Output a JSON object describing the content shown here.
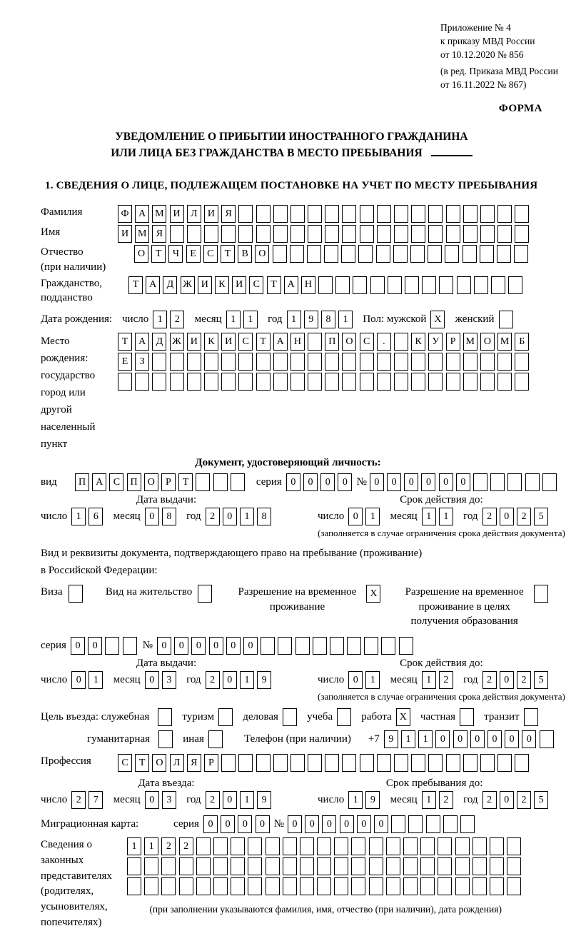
{
  "header": {
    "ref_main": "Приложение № 4\nк приказу МВД России\nот 10.12.2020 № 856",
    "ref_edit": "(в ред. Приказа МВД России\nот 16.11.2022 № 867)",
    "forma": "ФОРМА",
    "title_line1": "УВЕДОМЛЕНИЕ О ПРИБЫТИИ ИНОСТРАННОГО ГРАЖДАНИНА",
    "title_line2": "ИЛИ ЛИЦА БЕЗ ГРАЖДАНСТВА В МЕСТО ПРЕБЫВАНИЯ",
    "section1": "1. СВЕДЕНИЯ О ЛИЦЕ, ПОДЛЕЖАЩЕМ ПОСТАНОВКЕ НА УЧЕТ ПО МЕСТУ ПРЕБЫВАНИЯ"
  },
  "labels": {
    "surname": "Фамилия",
    "given_name": "Имя",
    "patronymic": "Отчество\n(при наличии)",
    "citizenship": "Гражданство,\nподданство",
    "birth_date": "Дата рождения:",
    "day": "число",
    "month": "месяц",
    "year": "год",
    "sex_male": "Пол: мужской",
    "sex_female": "женский",
    "birthplace": "Место рождения:\nгосударство\nгород или другой\nнаселенный пункт",
    "id_doc_header": "Документ, удостоверяющий личность:",
    "id_type": "вид",
    "series": "серия",
    "number_sign": "№",
    "issue_date": "Дата выдачи:",
    "valid_until": "Срок действия до:",
    "valid_note": "(заполняется в случае ограничения срока действия документа)",
    "permit_intro": "Вид и реквизиты документа, подтверждающего право на пребывание (проживание)\nв Российской Федерации:",
    "visa": "Виза",
    "residence_permit": "Вид на жительство",
    "temp_permit": "Разрешение на временное проживание",
    "temp_permit_edu": "Разрешение на временное проживание в целях получения образования",
    "entry_purpose": "Цель въезда: служебная",
    "tourism": "туризм",
    "business": "деловая",
    "study": "учеба",
    "work": "работа",
    "private": "частная",
    "transit": "транзит",
    "humanitarian": "гуманитарная",
    "other": "иная",
    "phone": "Телефон (при наличии)",
    "phone_prefix": "+7",
    "profession": "Профессия",
    "entry_date": "Дата въезда:",
    "stay_until": "Срок пребывания до:",
    "migration_card": "Миграционная карта:",
    "representatives": "Сведения о\nзаконных\nпредставителях\n(родителях,\nусыновителях,\nпопечителях)",
    "rep_note": "(при заполнении указываются фамилия, имя, отчество (при наличии), дата рождения)"
  },
  "fields": {
    "surname": {
      "chars": "ФАМИЛИЯ",
      "len": 24
    },
    "given_name": {
      "chars": "ИМЯ",
      "len": 24
    },
    "patronymic": {
      "chars": "ОТЧЕСТВО",
      "len": 23
    },
    "citizenship": {
      "chars": "ТАДЖИКИСТАН",
      "len": 23
    },
    "birth_day": {
      "chars": "12",
      "len": 2
    },
    "birth_month": {
      "chars": "11",
      "len": 2
    },
    "birth_year": {
      "chars": "1981",
      "len": 4
    },
    "sex_male": {
      "chars": "X",
      "len": 1
    },
    "sex_female": {
      "chars": "",
      "len": 1
    },
    "birthplace_row1": {
      "chars": "ТАДЖИКИСТАН ПОС. КУРМОМБ",
      "len": 24
    },
    "birthplace_row2": {
      "chars": "ЕЗ",
      "len": 24
    },
    "birthplace_row3": {
      "chars": "",
      "len": 24
    },
    "id_type": {
      "chars": "ПАСПОРТ",
      "len": 10
    },
    "id_series": {
      "chars": "0000",
      "len": 4
    },
    "id_number": {
      "chars": "000000",
      "len": 11
    },
    "id_issue_day": {
      "chars": "16",
      "len": 2
    },
    "id_issue_month": {
      "chars": "08",
      "len": 2
    },
    "id_issue_year": {
      "chars": "2018",
      "len": 4
    },
    "id_valid_day": {
      "chars": "01",
      "len": 2
    },
    "id_valid_month": {
      "chars": "11",
      "len": 2
    },
    "id_valid_year": {
      "chars": "2025",
      "len": 4
    },
    "cb_visa": {
      "chars": "",
      "len": 1
    },
    "cb_residence": {
      "chars": "",
      "len": 1
    },
    "cb_temp_permit": {
      "chars": "X",
      "len": 1
    },
    "cb_temp_permit_edu": {
      "chars": "",
      "len": 1
    },
    "permit_series": {
      "chars": "00",
      "len": 4
    },
    "permit_number": {
      "chars": "000000",
      "len": 15
    },
    "permit_issue_day": {
      "chars": "01",
      "len": 2
    },
    "permit_issue_month": {
      "chars": "03",
      "len": 2
    },
    "permit_issue_year": {
      "chars": "2019",
      "len": 4
    },
    "permit_valid_day": {
      "chars": "01",
      "len": 2
    },
    "permit_valid_month": {
      "chars": "12",
      "len": 2
    },
    "permit_valid_year": {
      "chars": "2025",
      "len": 4
    },
    "cb_official": {
      "chars": "",
      "len": 1
    },
    "cb_tourism": {
      "chars": "",
      "len": 1
    },
    "cb_business": {
      "chars": "",
      "len": 1
    },
    "cb_study": {
      "chars": "",
      "len": 1
    },
    "cb_work": {
      "chars": "X",
      "len": 1
    },
    "cb_private": {
      "chars": "",
      "len": 1
    },
    "cb_transit": {
      "chars": "",
      "len": 1
    },
    "cb_humanitarian": {
      "chars": "",
      "len": 1
    },
    "cb_other": {
      "chars": "",
      "len": 1
    },
    "phone": {
      "chars": "911000000",
      "len": 10
    },
    "profession": {
      "chars": "СТОЛЯР",
      "len": 24
    },
    "entry_day": {
      "chars": "27",
      "len": 2
    },
    "entry_month": {
      "chars": "03",
      "len": 2
    },
    "entry_year": {
      "chars": "2019",
      "len": 4
    },
    "stay_day": {
      "chars": "19",
      "len": 2
    },
    "stay_month": {
      "chars": "12",
      "len": 2
    },
    "stay_year": {
      "chars": "2025",
      "len": 4
    },
    "mig_series": {
      "chars": "0000",
      "len": 4
    },
    "mig_number": {
      "chars": "000000",
      "len": 11
    },
    "rep_row1": {
      "chars": "1122",
      "len": 23
    },
    "rep_row2": {
      "chars": "",
      "len": 23
    },
    "rep_row3": {
      "chars": "",
      "len": 23
    }
  }
}
